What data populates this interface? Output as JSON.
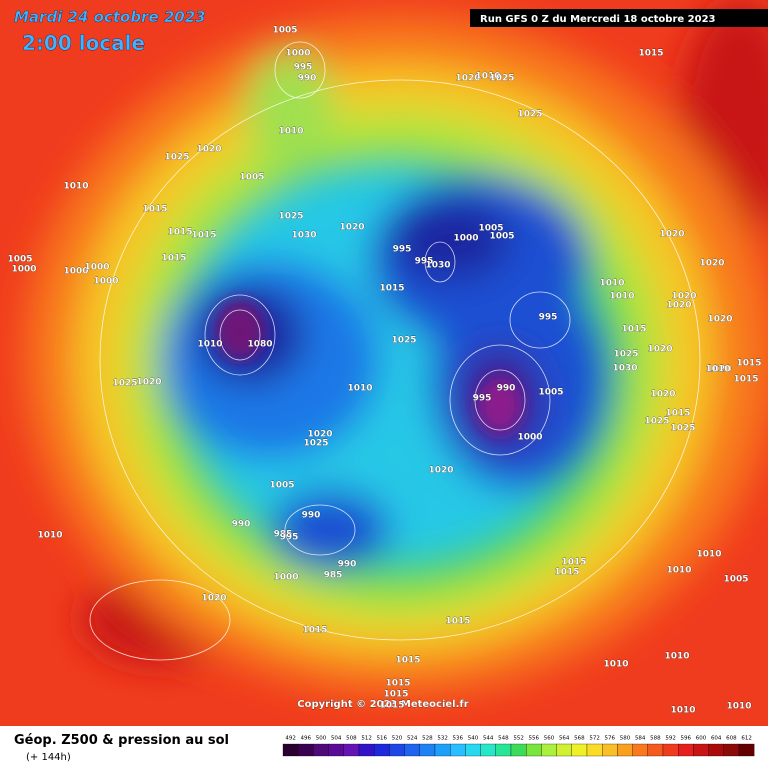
{
  "header": {
    "date": "Mardi 24 octobre 2023",
    "time": "2:00 locale",
    "run": "Run GFS 0 Z du Mercredi 18 octobre 2023"
  },
  "copyright": "Copyright © 2023 Meteociel.fr",
  "footer": {
    "title": "Géop. Z500 & pression au sol",
    "lead": "(+ 144h)"
  },
  "scale": [
    492,
    496,
    500,
    504,
    508,
    512,
    516,
    520,
    524,
    528,
    532,
    536,
    540,
    544,
    548,
    552,
    556,
    560,
    564,
    568,
    572,
    576,
    580,
    584,
    588,
    592,
    596,
    600,
    604,
    608,
    612
  ],
  "isobar_labels": [
    "1005",
    "1000",
    "995",
    "990",
    "1015",
    "1020",
    "1010",
    "1025",
    "1025",
    "1010",
    "1020",
    "1025",
    "1010",
    "1005",
    "1015",
    "1025",
    "1020",
    "1030",
    "1015",
    "1015",
    "995",
    "1000",
    "1005",
    "1005",
    "995",
    "1030",
    "1020",
    "1005",
    "1000",
    "1000",
    "1000",
    "1000",
    "1015",
    "1015",
    "1010",
    "1010",
    "1020",
    "1020",
    "1020",
    "1020",
    "995",
    "1015",
    "1025",
    "1010",
    "1080",
    "1020",
    "1025",
    "1030",
    "1020",
    "1010",
    "1015",
    "1015",
    "1025",
    "1020",
    "1010",
    "990",
    "995",
    "1005",
    "1020",
    "1015",
    "1025",
    "1025",
    "1000",
    "1020",
    "1025",
    "1020",
    "1005",
    "1010",
    "990",
    "990",
    "985",
    "995",
    "990",
    "985",
    "1000",
    "1015",
    "1015",
    "1010",
    "1010",
    "1005",
    "1020",
    "1015",
    "1015",
    "1015",
    "1010",
    "1010",
    "1015",
    "1015",
    "1015",
    "1010",
    "1010"
  ]
}
